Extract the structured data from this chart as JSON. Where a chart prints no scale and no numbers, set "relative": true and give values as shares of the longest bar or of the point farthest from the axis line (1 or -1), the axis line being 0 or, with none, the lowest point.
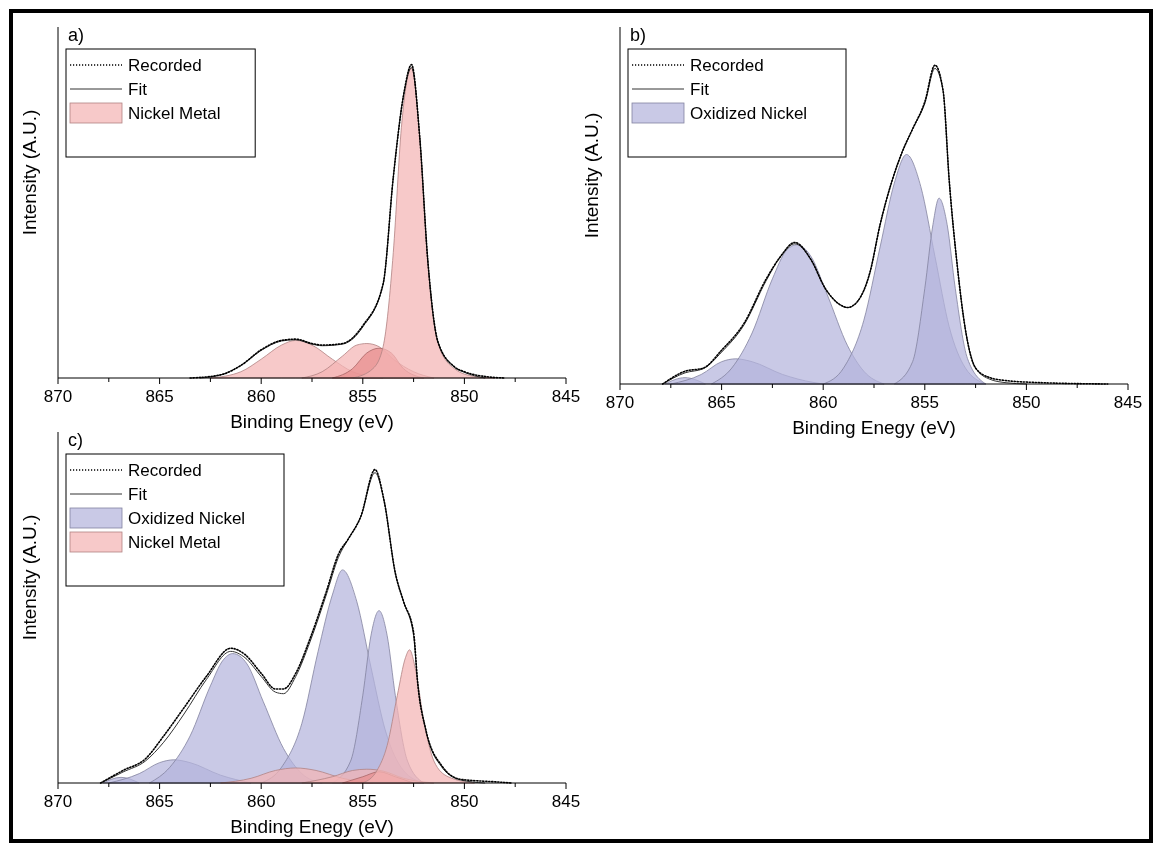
{
  "chart_data": [
    {
      "type": "line",
      "title": "a)",
      "xlabel": "Binding Enegy (eV)",
      "ylabel": "Intensity (A.U.)",
      "relative": true,
      "tick_labels": "x",
      "legend": "top left",
      "xlim": [
        870,
        845
      ],
      "xticks": [
        870,
        {
          "value": 867.5,
          "label": null
        },
        865,
        {
          "value": 862.5,
          "label": null
        },
        860,
        {
          "value": 857.5,
          "label": null
        },
        855,
        {
          "value": 852.5,
          "label": null
        },
        850,
        {
          "value": 847.5,
          "label": null
        },
        845
      ],
      "series": [
        {
          "type": "area",
          "name": "Nickel Metal",
          "color": "#f4b4b4",
          "x": [
            862.5,
            861,
            860,
            859,
            858.3,
            857.5,
            856.5,
            855.5,
            854
          ],
          "values": [
            0,
            0.02,
            0.06,
            0.105,
            0.12,
            0.105,
            0.06,
            0.02,
            0
          ]
        },
        {
          "type": "area",
          "color": "#f4b4b4",
          "x": [
            858,
            857,
            856,
            855.3,
            854.8,
            854.2,
            853.5,
            852.5,
            851.5
          ],
          "values": [
            0,
            0.02,
            0.07,
            0.105,
            0.11,
            0.1,
            0.06,
            0.02,
            0
          ]
        },
        {
          "type": "area",
          "color": "#e88c8c",
          "x": [
            856.5,
            855.5,
            854.8,
            854.2,
            853.6,
            853,
            852
          ],
          "values": [
            0,
            0.03,
            0.08,
            0.095,
            0.08,
            0.03,
            0
          ]
        },
        {
          "type": "area",
          "color": "#f4b4b4",
          "x": [
            855.5,
            854.5,
            854,
            853.5,
            853.1,
            852.6,
            852.2,
            851.8,
            851.3,
            850.5,
            849.5,
            848.5
          ],
          "values": [
            0,
            0.03,
            0.1,
            0.4,
            0.8,
            0.99,
            0.77,
            0.37,
            0.11,
            0.03,
            0.005,
            0
          ]
        },
        {
          "type": "line",
          "name": "Fit",
          "color": "#333333",
          "line_style": "solid",
          "x": [
            863,
            862,
            861,
            860,
            859,
            858.3,
            857.5,
            857,
            856,
            855,
            854,
            853.5,
            853,
            852.6,
            852.2,
            851.8,
            851.3,
            850.5,
            850,
            849
          ],
          "values": [
            0,
            0.01,
            0.04,
            0.088,
            0.118,
            0.122,
            0.108,
            0.103,
            0.108,
            0.163,
            0.3,
            0.64,
            0.9,
            0.99,
            0.77,
            0.37,
            0.115,
            0.035,
            0.018,
            0
          ]
        },
        {
          "type": "line",
          "name": "Recorded",
          "color": "#000000",
          "line_style": "dotted",
          "x": [
            863.5,
            862,
            861,
            860,
            859,
            858.3,
            857.5,
            857,
            856,
            855,
            854,
            853.5,
            853,
            852.6,
            852.2,
            851.8,
            851.3,
            850.5,
            850,
            849,
            848
          ],
          "values": [
            0,
            0.01,
            0.04,
            0.09,
            0.12,
            0.124,
            0.11,
            0.105,
            0.11,
            0.167,
            0.3,
            0.64,
            0.9,
            1,
            0.77,
            0.375,
            0.115,
            0.036,
            0.02,
            0.005,
            0
          ]
        }
      ]
    },
    {
      "type": "line",
      "title": "b)",
      "xlabel": "Binding Enegy (eV)",
      "ylabel": "Intensity (A.U.)",
      "relative": true,
      "tick_labels": "x",
      "legend": "top left",
      "xlim": [
        870,
        845
      ],
      "xticks": [
        870,
        {
          "value": 867.5,
          "label": null
        },
        865,
        {
          "value": 862.5,
          "label": null
        },
        860,
        {
          "value": 857.5,
          "label": null
        },
        855,
        {
          "value": 852.5,
          "label": null
        },
        850,
        {
          "value": 847.5,
          "label": null
        },
        845
      ],
      "series": [
        {
          "type": "area",
          "name": "Oxidized Nickel",
          "color": "#b4b4dc",
          "x": [
            867.8,
            866.8,
            865.8
          ],
          "values": [
            0,
            0.02,
            0
          ]
        },
        {
          "type": "area",
          "color": "#b4b4dc",
          "x": [
            867.5,
            866,
            865,
            864.3,
            863.5,
            862,
            860.5,
            860
          ],
          "values": [
            0,
            0.03,
            0.07,
            0.079,
            0.07,
            0.03,
            0.005,
            0
          ]
        },
        {
          "type": "area",
          "color": "#b4b4dc",
          "x": [
            865.5,
            864.5,
            863.5,
            862.5,
            861.8,
            861.3,
            860.6,
            859.8,
            858.8,
            858,
            857
          ],
          "values": [
            0,
            0.05,
            0.16,
            0.33,
            0.42,
            0.437,
            0.4,
            0.28,
            0.12,
            0.04,
            0
          ]
        },
        {
          "type": "area",
          "color": "#b4b4dc",
          "x": [
            860,
            859,
            858,
            857.2,
            856.5,
            855.9,
            855.2,
            854.5,
            853.8,
            853,
            852
          ],
          "values": [
            0,
            0.05,
            0.2,
            0.43,
            0.63,
            0.72,
            0.62,
            0.4,
            0.18,
            0.05,
            0
          ]
        },
        {
          "type": "area",
          "color": "#b4b4dc",
          "x": [
            856.5,
            855.6,
            855,
            854.6,
            854.3,
            853.9,
            853.5,
            852.9,
            852
          ],
          "values": [
            0,
            0.07,
            0.3,
            0.5,
            0.583,
            0.5,
            0.3,
            0.08,
            0
          ]
        },
        {
          "type": "line",
          "name": "Fit",
          "color": "#333333",
          "line_style": "solid",
          "x": [
            867.9,
            866.8,
            865.9,
            865,
            863.9,
            862.8,
            862.1,
            861.4,
            860.6,
            859.9,
            859.2,
            858.8,
            858.3,
            857.7,
            857.2,
            856.6,
            856.1,
            855.6,
            855,
            854.5,
            854.1,
            853.8,
            853.4,
            853,
            852.5,
            851.8,
            851,
            850
          ],
          "values": [
            0,
            0.035,
            0.048,
            0.1,
            0.185,
            0.325,
            0.4,
            0.44,
            0.39,
            0.3,
            0.25,
            0.24,
            0.26,
            0.35,
            0.5,
            0.64,
            0.73,
            0.8,
            0.88,
            0.99,
            0.92,
            0.64,
            0.37,
            0.17,
            0.05,
            0.015,
            0.004,
            0
          ]
        },
        {
          "type": "line",
          "name": "Recorded",
          "color": "#000000",
          "line_style": "dotted",
          "x": [
            867.9,
            866.8,
            865.9,
            865,
            863.9,
            862.8,
            862.1,
            861.4,
            860.6,
            859.9,
            859.2,
            858.8,
            858.3,
            857.7,
            857.2,
            856.6,
            856.1,
            855.6,
            855,
            854.5,
            854.1,
            853.8,
            853.4,
            853,
            852.5,
            851.8,
            850.9,
            849.6,
            846
          ],
          "values": [
            0,
            0.04,
            0.05,
            0.106,
            0.19,
            0.33,
            0.4,
            0.444,
            0.39,
            0.3,
            0.25,
            0.24,
            0.26,
            0.35,
            0.5,
            0.64,
            0.73,
            0.8,
            0.885,
            1,
            0.92,
            0.64,
            0.37,
            0.17,
            0.05,
            0.02,
            0.01,
            0.005,
            0
          ]
        }
      ]
    },
    {
      "type": "line",
      "title": "c)",
      "xlabel": "Binding Enegy (eV)",
      "ylabel": "Intensity (A.U.)",
      "relative": true,
      "tick_labels": "x",
      "legend": "top left",
      "xlim": [
        870,
        845
      ],
      "xticks": [
        870,
        {
          "value": 867.5,
          "label": null
        },
        865,
        {
          "value": 862.5,
          "label": null
        },
        860,
        {
          "value": 857.5,
          "label": null
        },
        855,
        {
          "value": 852.5,
          "label": null
        },
        850,
        {
          "value": 847.5,
          "label": null
        },
        845
      ],
      "series": [
        {
          "type": "area",
          "name": "Oxidized Nickel",
          "color": "#b4b4dc",
          "x": [
            867.8,
            866.9,
            866
          ],
          "values": [
            0,
            0.018,
            0
          ]
        },
        {
          "type": "area",
          "color": "#b4b4dc",
          "x": [
            867.5,
            866,
            865,
            864.3,
            863.5,
            862,
            860.5
          ],
          "values": [
            0,
            0.03,
            0.065,
            0.074,
            0.065,
            0.025,
            0
          ]
        },
        {
          "type": "area",
          "color": "#b4b4dc",
          "x": [
            865.5,
            864.5,
            863.5,
            862.5,
            861.9,
            861.4,
            860.7,
            859.9,
            858.9,
            858,
            857
          ],
          "values": [
            0,
            0.05,
            0.15,
            0.31,
            0.39,
            0.413,
            0.38,
            0.26,
            0.11,
            0.03,
            0
          ]
        },
        {
          "type": "area",
          "color": "#b4b4dc",
          "x": [
            860,
            859,
            858,
            857.2,
            856.5,
            856,
            855.3,
            854.6,
            853.9,
            853,
            852
          ],
          "values": [
            0,
            0.05,
            0.19,
            0.42,
            0.6,
            0.68,
            0.58,
            0.37,
            0.17,
            0.04,
            0
          ]
        },
        {
          "type": "area",
          "color": "#b4b4dc",
          "x": [
            856.5,
            855.6,
            855,
            854.6,
            854.2,
            853.8,
            853.4,
            852.8,
            852
          ],
          "values": [
            0,
            0.07,
            0.28,
            0.47,
            0.55,
            0.47,
            0.28,
            0.07,
            0
          ]
        },
        {
          "type": "area",
          "name": "Nickel Metal",
          "color": "#f4b4b4",
          "x": [
            862,
            860.5,
            859.3,
            858.3,
            857.3,
            856,
            854.5
          ],
          "values": [
            0,
            0.015,
            0.04,
            0.048,
            0.04,
            0.015,
            0
          ]
        },
        {
          "type": "area",
          "color": "#f4b4b4",
          "x": [
            858,
            856.5,
            855.5,
            854.8,
            854,
            853,
            851.5
          ],
          "values": [
            0,
            0.02,
            0.04,
            0.044,
            0.038,
            0.015,
            0
          ]
        },
        {
          "type": "area",
          "color": "#e88c8c",
          "x": [
            856,
            855,
            854.2,
            853.4,
            852.5
          ],
          "values": [
            0,
            0.02,
            0.036,
            0.02,
            0
          ]
        },
        {
          "type": "area",
          "color": "#f4b4b4",
          "x": [
            855,
            854.3,
            853.8,
            853.3,
            852.9,
            852.7,
            852.4,
            852,
            851.5,
            850.8,
            849.5
          ],
          "values": [
            0,
            0.04,
            0.12,
            0.28,
            0.4,
            0.425,
            0.36,
            0.2,
            0.07,
            0.02,
            0
          ]
        },
        {
          "type": "line",
          "name": "Fit",
          "color": "#333333",
          "line_style": "solid",
          "x": [
            867.9,
            866.8,
            865.7,
            864.8,
            863.8,
            862.7,
            861.5,
            860.8,
            860,
            859.3,
            858.9,
            858.3,
            857.6,
            856.8,
            856.2,
            855.7,
            855.1,
            854.4,
            853.95,
            853.4,
            853,
            852.5,
            852.3,
            851.9,
            851.1,
            850.2,
            849
          ],
          "values": [
            0,
            0.035,
            0.07,
            0.13,
            0.22,
            0.33,
            0.42,
            0.4,
            0.34,
            0.29,
            0.285,
            0.34,
            0.45,
            0.6,
            0.72,
            0.78,
            0.85,
            0.99,
            0.9,
            0.67,
            0.58,
            0.47,
            0.32,
            0.17,
            0.05,
            0.01,
            0
          ]
        },
        {
          "type": "line",
          "name": "Recorded",
          "color": "#000000",
          "line_style": "dotted",
          "x": [
            867.9,
            866.8,
            865.7,
            864.8,
            863.8,
            862.7,
            861.5,
            860.8,
            860,
            859.3,
            858.9,
            858.3,
            857.6,
            856.8,
            856.2,
            855.7,
            855.1,
            854.4,
            853.95,
            853.4,
            853,
            852.5,
            852.3,
            851.9,
            851.1,
            850.2,
            848.3,
            847.7
          ],
          "values": [
            0,
            0.04,
            0.077,
            0.15,
            0.24,
            0.34,
            0.43,
            0.41,
            0.35,
            0.3,
            0.3,
            0.35,
            0.46,
            0.61,
            0.73,
            0.78,
            0.85,
            1,
            0.9,
            0.67,
            0.58,
            0.48,
            0.32,
            0.17,
            0.054,
            0.012,
            0.003,
            0
          ]
        }
      ]
    }
  ]
}
